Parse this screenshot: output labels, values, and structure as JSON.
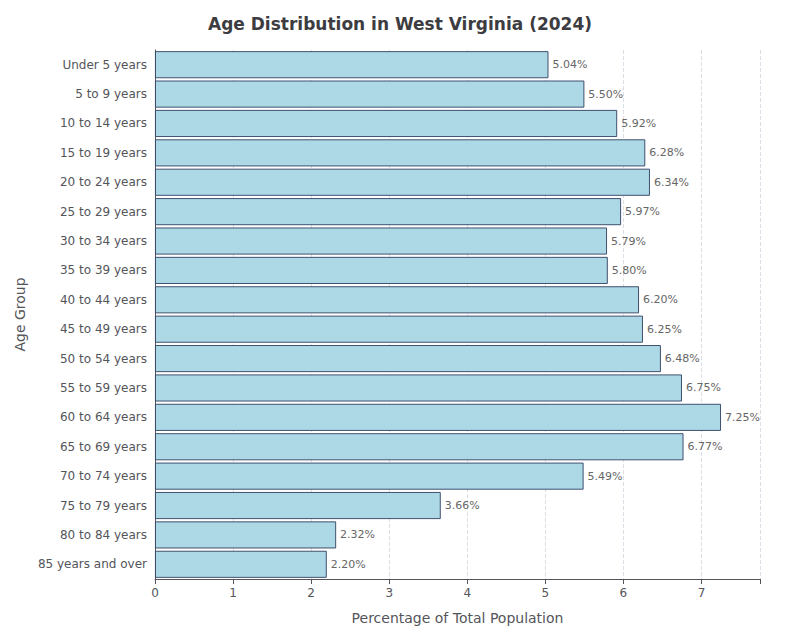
{
  "chart_data": {
    "type": "bar",
    "orientation": "horizontal",
    "title": "Age Distribution in West Virginia (2024)",
    "xlabel": "Percentage of Total Population",
    "ylabel": "Age Group",
    "categories": [
      "Under 5 years",
      "5 to 9 years",
      "10 to 14 years",
      "15 to 19 years",
      "20 to 24 years",
      "25 to 29 years",
      "30 to 34 years",
      "35 to 39 years",
      "40 to 44 years",
      "45 to 49 years",
      "50 to 54 years",
      "55 to 59 years",
      "60 to 64 years",
      "65 to 69 years",
      "70 to 74 years",
      "75 to 79 years",
      "80 to 84 years",
      "85 years and over"
    ],
    "values": [
      5.04,
      5.5,
      5.92,
      6.28,
      6.34,
      5.97,
      5.79,
      5.8,
      6.2,
      6.25,
      6.48,
      6.75,
      7.25,
      6.77,
      5.49,
      3.66,
      2.32,
      2.2
    ],
    "value_labels": [
      "5.04%",
      "5.50%",
      "5.92%",
      "6.28%",
      "6.34%",
      "5.97%",
      "5.79%",
      "5.80%",
      "6.20%",
      "6.25%",
      "6.48%",
      "6.75%",
      "7.25%",
      "6.77%",
      "5.49%",
      "3.66%",
      "2.32%",
      "2.20%"
    ],
    "data_labels": true,
    "color": "#add8e6",
    "xlim": [
      0,
      7.75
    ],
    "xticks": [
      0,
      1,
      2,
      3,
      4,
      5,
      6,
      7
    ],
    "grid": true
  }
}
